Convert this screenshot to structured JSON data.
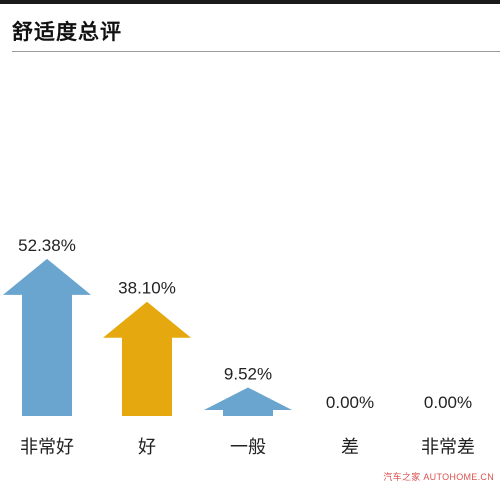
{
  "title": "舒适度总评",
  "watermark": "汽车之家 AUTOHOME.CN",
  "colors": {
    "blue": "#6aa5cf",
    "gold": "#e5a90f",
    "text": "#222222",
    "rule": "#1a1a1a"
  },
  "chart_data": {
    "type": "bar",
    "title": "舒适度总评",
    "categories": [
      "非常好",
      "好",
      "一般",
      "差",
      "非常差"
    ],
    "values": [
      52.38,
      38.1,
      9.52,
      0.0,
      0.0
    ],
    "value_labels": [
      "52.38%",
      "38.10%",
      "9.52%",
      "0.00%",
      "0.00%"
    ],
    "bar_colors": [
      "#6aa5cf",
      "#e5a90f",
      "#6aa5cf",
      "#6aa5cf",
      "#6aa5cf"
    ],
    "ylim": [
      0,
      100
    ],
    "xlabel": "",
    "ylabel": "",
    "grid": false,
    "legend": "none"
  }
}
